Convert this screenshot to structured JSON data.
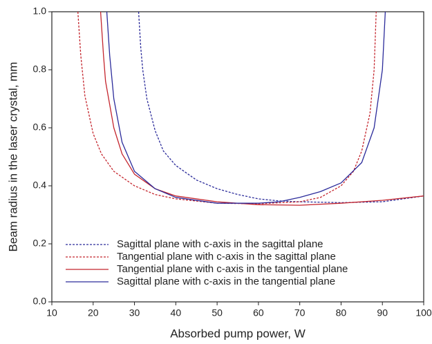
{
  "chart_data": {
    "type": "line",
    "xlabel": "Absorbed pump power, W",
    "ylabel": "Beam radius in the laser crystal, mm",
    "xlim": [
      10,
      100
    ],
    "xticks": [
      10,
      20,
      30,
      40,
      50,
      60,
      70,
      80,
      90,
      100
    ],
    "ylim": [
      0,
      1.0
    ],
    "yticks": [
      {
        "value": 0,
        "label": "0.0"
      },
      {
        "value": 0.2,
        "label": "0.2"
      },
      {
        "value": 0.4,
        "label": "0.4"
      },
      {
        "value": 0.6,
        "label": "0.6"
      },
      {
        "value": 0.8,
        "label": "0.8"
      },
      {
        "value": 1.0,
        "label": "1.0"
      }
    ],
    "legend": "lower left",
    "series": [
      {
        "name": "Sagittal plane with c-axis in the sagittal plane",
        "color": "#2a2a9a",
        "dash": true,
        "x": [
          31,
          31.5,
          32,
          33,
          35,
          37,
          40,
          45,
          50,
          55,
          60,
          65,
          70,
          80,
          90,
          100
        ],
        "values": [
          1.0,
          0.88,
          0.8,
          0.7,
          0.59,
          0.52,
          0.47,
          0.42,
          0.39,
          0.37,
          0.355,
          0.348,
          0.345,
          0.342,
          0.345,
          0.365
        ]
      },
      {
        "name": "Tangential plane with c-axis in the sagittal plane",
        "color": "#c4242c",
        "dash": true,
        "x": [
          16.3,
          17,
          18,
          20,
          22,
          25,
          30,
          35,
          40,
          50,
          60,
          70,
          75,
          80,
          83,
          85,
          87,
          88,
          88.5
        ],
        "values": [
          1.0,
          0.85,
          0.71,
          0.58,
          0.51,
          0.45,
          0.4,
          0.37,
          0.355,
          0.34,
          0.338,
          0.345,
          0.36,
          0.4,
          0.45,
          0.52,
          0.65,
          0.8,
          1.0
        ]
      },
      {
        "name": "Tangential plane with c-axis in the tangential plane",
        "color": "#c4242c",
        "dash": false,
        "x": [
          21.8,
          22.5,
          23,
          25,
          27,
          30,
          35,
          40,
          50,
          60,
          70,
          80,
          90,
          100
        ],
        "values": [
          1.0,
          0.85,
          0.76,
          0.6,
          0.51,
          0.44,
          0.39,
          0.365,
          0.345,
          0.335,
          0.333,
          0.34,
          0.35,
          0.365
        ]
      },
      {
        "name": "Sagittal plane with c-axis in the tangential plane",
        "color": "#2a2a9a",
        "dash": false,
        "x": [
          23.3,
          24,
          25,
          27,
          30,
          35,
          40,
          50,
          60,
          65,
          70,
          75,
          80,
          85,
          88,
          90,
          90.7
        ],
        "values": [
          1.0,
          0.85,
          0.7,
          0.55,
          0.45,
          0.39,
          0.36,
          0.34,
          0.34,
          0.345,
          0.36,
          0.38,
          0.41,
          0.48,
          0.6,
          0.8,
          1.0
        ]
      }
    ]
  }
}
